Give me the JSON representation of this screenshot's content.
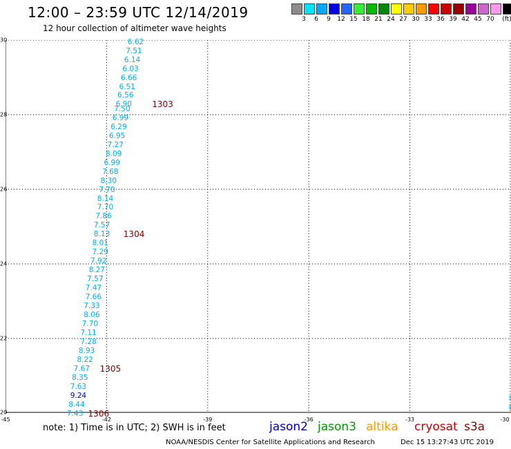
{
  "title": "12:00 – 23:59 UTC 12/14/2019",
  "subtitle": "12 hour collection of altimeter wave heights",
  "colorbar": {
    "colors": [
      "#8c8c8c",
      "#00e5ff",
      "#00aaff",
      "#0000e6",
      "#2266ff",
      "#33ee33",
      "#00bb00",
      "#008800",
      "#ffff00",
      "#ffcc00",
      "#ff9900",
      "#ff0000",
      "#cc0000",
      "#990000",
      "#990099",
      "#cc66cc",
      "#ff99ee",
      "#000000"
    ],
    "labels": [
      "3",
      "6",
      "9",
      "12",
      "15",
      "18",
      "21",
      "24",
      "27",
      "30",
      "33",
      "36",
      "39",
      "42",
      "45",
      "70",
      "(ft)"
    ]
  },
  "axes": {
    "y_ticks": [
      "30",
      "28",
      "26",
      "24",
      "22",
      "20"
    ],
    "x_ticks": [
      "-45",
      "-42",
      "-39",
      "-36",
      "-33",
      "-30"
    ]
  },
  "wave_heights": [
    {
      "lat": 29.95,
      "lon": -40.9,
      "swh": "6.62",
      "mission": "jason3_cyan"
    },
    {
      "lat": 29.71,
      "lon": -40.95,
      "swh": "7.51",
      "mission": "jason3_cyan"
    },
    {
      "lat": 29.47,
      "lon": -41.0,
      "swh": "6.14",
      "mission": "jason3_cyan"
    },
    {
      "lat": 29.23,
      "lon": -41.05,
      "swh": "6.03",
      "mission": "jason3_cyan"
    },
    {
      "lat": 28.99,
      "lon": -41.1,
      "swh": "6.66",
      "mission": "jason3_cyan"
    },
    {
      "lat": 28.75,
      "lon": -41.15,
      "swh": "6.51",
      "mission": "jason3_cyan"
    },
    {
      "lat": 28.51,
      "lon": -41.2,
      "swh": "6.56",
      "mission": "jason3_cyan"
    },
    {
      "lat": 28.27,
      "lon": -41.25,
      "swh": "6.90",
      "mission": "jason3_cyan"
    },
    {
      "lat": 28.15,
      "lon": -41.3,
      "swh": "7.50",
      "mission": "jason3_cyan"
    },
    {
      "lat": 27.91,
      "lon": -41.35,
      "swh": "6.99",
      "mission": "jason3_cyan"
    },
    {
      "lat": 27.67,
      "lon": -41.4,
      "swh": "6.29",
      "mission": "jason3_cyan"
    },
    {
      "lat": 27.43,
      "lon": -41.45,
      "swh": "6.95",
      "mission": "jason3_cyan"
    },
    {
      "lat": 27.19,
      "lon": -41.5,
      "swh": "7.27",
      "mission": "jason3_cyan"
    },
    {
      "lat": 26.95,
      "lon": -41.55,
      "swh": "8.09",
      "mission": "jason3_cyan"
    },
    {
      "lat": 26.71,
      "lon": -41.6,
      "swh": "6.99",
      "mission": "jason3_cyan"
    },
    {
      "lat": 26.47,
      "lon": -41.65,
      "swh": "7.68",
      "mission": "jason3_cyan"
    },
    {
      "lat": 26.23,
      "lon": -41.7,
      "swh": "8.30",
      "mission": "jason3_cyan"
    },
    {
      "lat": 25.99,
      "lon": -41.75,
      "swh": "7.70",
      "mission": "jason3_cyan"
    },
    {
      "lat": 25.75,
      "lon": -41.8,
      "swh": "8.14",
      "mission": "jason3_cyan"
    },
    {
      "lat": 25.51,
      "lon": -41.8,
      "swh": "7.70",
      "mission": "jason3_cyan"
    },
    {
      "lat": 25.27,
      "lon": -41.85,
      "swh": "7.86",
      "mission": "jason3_cyan"
    },
    {
      "lat": 25.03,
      "lon": -41.9,
      "swh": "7.57",
      "mission": "jason3_cyan"
    },
    {
      "lat": 24.79,
      "lon": -41.9,
      "swh": "8.13",
      "mission": "jason3_cyan"
    },
    {
      "lat": 24.55,
      "lon": -41.95,
      "swh": "8.01",
      "mission": "jason3_cyan"
    },
    {
      "lat": 24.31,
      "lon": -41.95,
      "swh": "7.29",
      "mission": "jason3_cyan"
    },
    {
      "lat": 24.07,
      "lon": -42.0,
      "swh": "7.92",
      "mission": "jason3_cyan"
    },
    {
      "lat": 23.83,
      "lon": -42.05,
      "swh": "8.27",
      "mission": "jason3_cyan"
    },
    {
      "lat": 23.59,
      "lon": -42.1,
      "swh": "7.57",
      "mission": "jason3_cyan"
    },
    {
      "lat": 23.35,
      "lon": -42.15,
      "swh": "7.47",
      "mission": "jason3_cyan"
    },
    {
      "lat": 23.11,
      "lon": -42.15,
      "swh": "7.66",
      "mission": "jason3_cyan"
    },
    {
      "lat": 22.87,
      "lon": -42.2,
      "swh": "7.33",
      "mission": "jason3_cyan"
    },
    {
      "lat": 22.63,
      "lon": -42.2,
      "swh": "8.06",
      "mission": "jason3_cyan"
    },
    {
      "lat": 22.39,
      "lon": -42.25,
      "swh": "7.70",
      "mission": "jason3_cyan"
    },
    {
      "lat": 22.15,
      "lon": -42.3,
      "swh": "7.11",
      "mission": "jason3_cyan"
    },
    {
      "lat": 21.91,
      "lon": -42.3,
      "swh": "7.28",
      "mission": "jason3_cyan"
    },
    {
      "lat": 21.67,
      "lon": -42.35,
      "swh": "8.93",
      "mission": "jason3_cyan"
    },
    {
      "lat": 21.43,
      "lon": -42.4,
      "swh": "8.22",
      "mission": "jason3_cyan"
    },
    {
      "lat": 21.19,
      "lon": -42.5,
      "swh": "7.67",
      "mission": "jason3_cyan"
    },
    {
      "lat": 20.95,
      "lon": -42.55,
      "swh": "8.35",
      "mission": "jason3_cyan"
    },
    {
      "lat": 20.71,
      "lon": -42.6,
      "swh": "7.63",
      "mission": "jason3_cyan"
    },
    {
      "lat": 20.47,
      "lon": -42.6,
      "swh": "9.24",
      "mission": "jason2_blue"
    },
    {
      "lat": 20.23,
      "lon": -42.65,
      "swh": "8.44",
      "mission": "jason3_cyan"
    },
    {
      "lat": 19.99,
      "lon": -42.7,
      "swh": "7.43",
      "mission": "jason3_cyan"
    }
  ],
  "pass_labels": [
    {
      "lat": 28.27,
      "lon": -40.65,
      "text": "1303"
    },
    {
      "lat": 24.79,
      "lon": -41.5,
      "text": "1304"
    },
    {
      "lat": 21.19,
      "lon": -42.2,
      "text": "1305"
    },
    {
      "lat": 19.99,
      "lon": -42.55,
      "text": "1306"
    }
  ],
  "edge_values": [
    {
      "lat": 20.39,
      "lon": -29.97,
      "text": "8"
    },
    {
      "lat": 20.15,
      "lon": -29.97,
      "text": "8"
    }
  ],
  "note": "note:  1) Time is in UTC;  2) SWH is in feet",
  "legend": [
    {
      "name": "jason2",
      "color": "#0000cc"
    },
    {
      "name": "jason3",
      "color": "#009900"
    },
    {
      "name": "altika",
      "color": "#ff9900"
    },
    {
      "name": "cryosat",
      "color": "#cc0000"
    },
    {
      "name": "s3a",
      "color": "#990000"
    }
  ],
  "footer": {
    "left": "NOAA/NESDIS Center for Satellite Applications and Research",
    "right": "Dec 15 13:27:43 UTC 2019"
  }
}
